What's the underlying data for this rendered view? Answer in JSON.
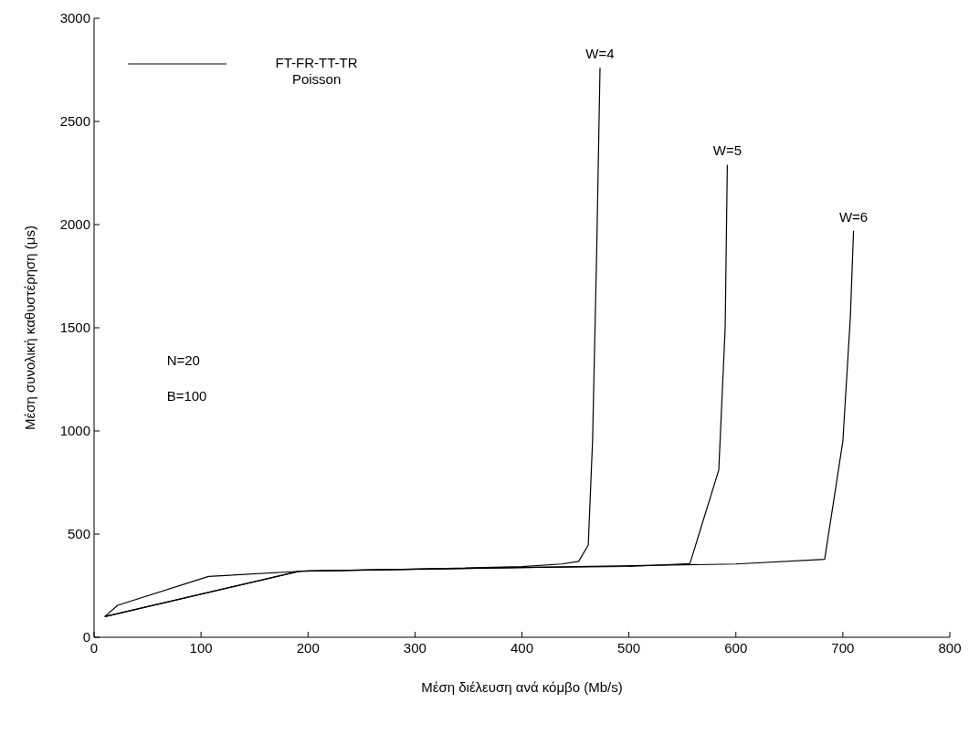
{
  "chart_data": {
    "type": "line",
    "xlabel": "Μέση διέλευση ανά κόμβο    (Mb/s)",
    "ylabel": "Μέση συνολική καθυστέρηση (μs)",
    "xlim": [
      0,
      800
    ],
    "xticks": [
      0,
      100,
      200,
      300,
      400,
      500,
      600,
      700,
      800
    ],
    "ylim": [
      0,
      3000
    ],
    "yticks": [
      0,
      500,
      1000,
      1500,
      2000,
      2500,
      3000
    ],
    "grid": false,
    "marker": "none",
    "line_style": "solid",
    "annotations": [
      "FT-FR-TT-TR",
      "Poisson",
      "N=20",
      "B=100"
    ],
    "series": [
      {
        "name": "W=4",
        "color": "#000000",
        "x": [
          10,
          22,
          107,
          200,
          300,
          400,
          437,
          453,
          462,
          466,
          470,
          473
        ],
        "values": [
          100,
          155,
          295,
          322,
          330,
          342,
          355,
          368,
          447,
          950,
          1900,
          2760
        ]
      },
      {
        "name": "W=5",
        "color": "#000000",
        "x": [
          10,
          192,
          300,
          400,
          500,
          557,
          584,
          590,
          592
        ],
        "values": [
          100,
          320,
          330,
          338,
          343,
          357,
          810,
          1500,
          2290
        ]
      },
      {
        "name": "W=6",
        "color": "#000000",
        "x": [
          10,
          192,
          400,
          600,
          683,
          700,
          707,
          710
        ],
        "values": [
          100,
          320,
          338,
          355,
          378,
          950,
          1550,
          1970
        ]
      }
    ]
  }
}
